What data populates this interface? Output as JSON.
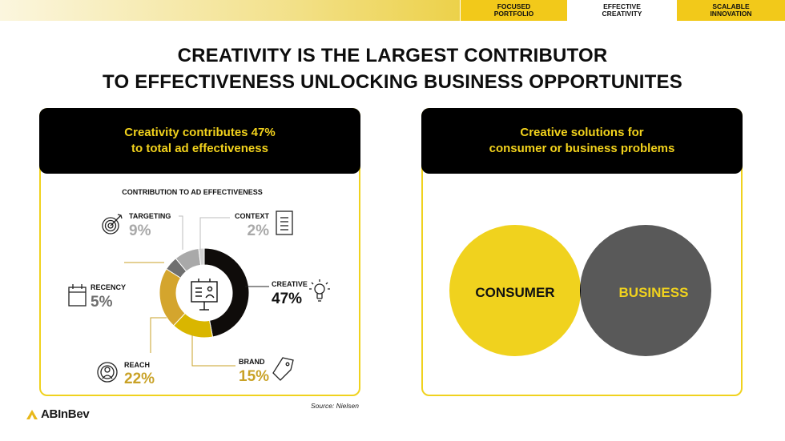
{
  "nav": {
    "tabs": [
      {
        "line1": "FOCUSED",
        "line2": "PORTFOLIO"
      },
      {
        "line1": "EFFECTIVE",
        "line2": "CREATIVITY"
      },
      {
        "line1": "SCALABLE",
        "line2": "INNOVATION"
      }
    ],
    "active_index": 1
  },
  "title": {
    "line1": "CREATIVITY IS THE LARGEST CONTRIBUTOR",
    "line2": "TO EFFECTIVENESS UNLOCKING BUSINESS OPPORTUNITES"
  },
  "left_panel": {
    "header_line1": "Creativity contributes 47%",
    "header_line2": "to total ad effectiveness"
  },
  "right_panel": {
    "header_line1": "Creative solutions for",
    "header_line2": "consumer or business problems",
    "venn": {
      "left_label": "CONSUMER",
      "right_label": "BUSINESS",
      "left_color": "#f0d21e",
      "right_color": "#595959",
      "overlap_color": "#000000"
    }
  },
  "chart_data": {
    "type": "pie",
    "title": "CONTRIBUTION TO AD EFFECTIVENESS",
    "slices": [
      {
        "label": "CREATIVE",
        "value": 47,
        "value_label": "47%",
        "color": "#0f0c0a",
        "icon": "lightbulb-icon"
      },
      {
        "label": "BRAND",
        "value": 15,
        "value_label": "15%",
        "color": "#d9b600",
        "icon": "tag-icon"
      },
      {
        "label": "REACH",
        "value": 22,
        "value_label": "22%",
        "color": "#d4a52d",
        "icon": "reach-icon"
      },
      {
        "label": "RECENCY",
        "value": 5,
        "value_label": "5%",
        "color": "#6f6f6f",
        "icon": "calendar-icon"
      },
      {
        "label": "TARGETING",
        "value": 9,
        "value_label": "9%",
        "color": "#a9a9a9",
        "icon": "target-icon"
      },
      {
        "label": "CONTEXT",
        "value": 2,
        "value_label": "2%",
        "color": "#d2d2d2",
        "icon": "document-icon"
      }
    ],
    "start_angle_deg": 0,
    "donut": true
  },
  "source": "Source: Nielsen",
  "logo": "ABInBev",
  "colors": {
    "accent_yellow": "#f0d21e",
    "gold": "#c9a227",
    "gray_text": "#a9a9a9",
    "black": "#000000"
  }
}
